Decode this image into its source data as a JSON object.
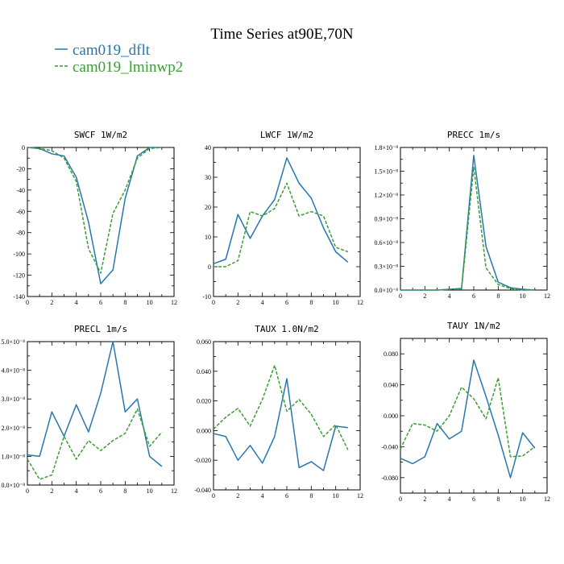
{
  "title": "Time Series at90E,70N",
  "legend": [
    {
      "label": "cam019_dflt",
      "color": "#2677b1",
      "dash": ""
    },
    {
      "label": "cam019_lminwp2",
      "color": "#3a9e32",
      "dash": "4,2"
    }
  ],
  "chart_data": [
    {
      "type": "line",
      "title": "SWCF  1W/m2",
      "x": [
        0,
        1,
        2,
        3,
        4,
        5,
        6,
        7,
        8,
        9,
        10,
        11
      ],
      "xlim": [
        0,
        12
      ],
      "xticks": [
        "0",
        "2",
        "4",
        "6",
        "8",
        "10",
        "12"
      ],
      "xtick_values": [
        0,
        2,
        4,
        6,
        8,
        10,
        12
      ],
      "ylim": [
        -140,
        0
      ],
      "yticks": [
        "0",
        "-20",
        "-40",
        "-60",
        "-80",
        "-100",
        "-120",
        "-140"
      ],
      "ytick_values": [
        0,
        -20,
        -40,
        -60,
        -80,
        -100,
        -120,
        -140
      ],
      "series": [
        {
          "name": "cam019_dflt",
          "values": [
            0,
            -1,
            -6,
            -8,
            -28,
            -70,
            -128,
            -115,
            -48,
            -8,
            0,
            0
          ]
        },
        {
          "name": "cam019_lminwp2",
          "values": [
            0,
            -1,
            -3,
            -10,
            -32,
            -95,
            -118,
            -62,
            -40,
            -10,
            -1,
            0
          ]
        }
      ]
    },
    {
      "type": "line",
      "title": "LWCF  1W/m2",
      "x": [
        0,
        1,
        2,
        3,
        4,
        5,
        6,
        7,
        8,
        9,
        10,
        11
      ],
      "xlim": [
        0,
        12
      ],
      "xticks": [
        "0",
        "2",
        "4",
        "6",
        "8",
        "10",
        "12"
      ],
      "xtick_values": [
        0,
        2,
        4,
        6,
        8,
        10,
        12
      ],
      "ylim": [
        -10,
        40
      ],
      "yticks": [
        "40",
        "30",
        "20",
        "10",
        "0",
        "-10"
      ],
      "ytick_values": [
        40,
        30,
        20,
        10,
        0,
        -10
      ],
      "series": [
        {
          "name": "cam019_dflt",
          "values": [
            1,
            2.5,
            17.5,
            9.5,
            17,
            22.5,
            36.5,
            28,
            23,
            13,
            5,
            1.5
          ]
        },
        {
          "name": "cam019_lminwp2",
          "values": [
            0,
            0,
            2,
            18.5,
            17,
            19.5,
            28,
            17,
            18.5,
            17,
            6.5,
            5
          ]
        }
      ]
    },
    {
      "type": "line",
      "title": "PRECC  1m/s",
      "x": [
        0,
        1,
        2,
        3,
        4,
        5,
        6,
        7,
        8,
        9,
        10,
        11
      ],
      "xlim": [
        0,
        12
      ],
      "xticks": [
        "0",
        "2",
        "4",
        "6",
        "8",
        "10",
        "12"
      ],
      "xtick_values": [
        0,
        2,
        4,
        6,
        8,
        10,
        12
      ],
      "ylim": [
        0,
        1.8e-08
      ],
      "yticks": [
        "1.8×10⁻⁸",
        "1.5×10⁻⁸",
        "1.2×10⁻⁸",
        "0.9×10⁻⁸",
        "0.6×10⁻⁸",
        "0.3×10⁻⁸",
        "0.0×10⁻⁸"
      ],
      "ytick_values": [
        1.8e-08,
        1.5e-08,
        1.2e-08,
        9e-09,
        6e-09,
        3e-09,
        0
      ],
      "series": [
        {
          "name": "cam019_dflt",
          "values": [
            0,
            0,
            0,
            0,
            1e-10,
            2e-10,
            1.7e-08,
            5.5e-09,
            1e-09,
            3e-10,
            1e-10,
            0
          ]
        },
        {
          "name": "cam019_lminwp2",
          "values": [
            0,
            0,
            0,
            0,
            1e-10,
            1e-10,
            1.55e-08,
            2.8e-09,
            7e-10,
            2e-10,
            0,
            0
          ]
        }
      ]
    },
    {
      "type": "line",
      "title": "PRECL  1m/s",
      "x": [
        0,
        1,
        2,
        3,
        4,
        5,
        6,
        7,
        8,
        9,
        10,
        11
      ],
      "xlim": [
        0,
        12
      ],
      "xticks": [
        "0",
        "2",
        "4",
        "6",
        "8",
        "10",
        "12"
      ],
      "xtick_values": [
        0,
        2,
        4,
        6,
        8,
        10,
        12
      ],
      "ylim": [
        0,
        5e-08
      ],
      "yticks": [
        "5.0×10⁻⁸",
        "4.0×10⁻⁸",
        "3.0×10⁻⁸",
        "2.0×10⁻⁸",
        "1.0×10⁻⁸",
        "0.0×10⁻⁸"
      ],
      "ytick_values": [
        5e-08,
        4e-08,
        3e-08,
        2e-08,
        1e-08,
        0
      ],
      "series": [
        {
          "name": "cam019_dflt",
          "values": [
            1.05e-08,
            1e-08,
            2.55e-08,
            1.7e-08,
            2.8e-08,
            1.85e-08,
            3.2e-08,
            5e-08,
            2.55e-08,
            3e-08,
            1e-08,
            6.5e-09
          ]
        },
        {
          "name": "cam019_lminwp2",
          "values": [
            9e-09,
            2e-09,
            3.5e-09,
            1.7e-08,
            9e-09,
            1.55e-08,
            1.2e-08,
            1.55e-08,
            1.8e-08,
            2.65e-08,
            1.35e-08,
            1.85e-08
          ]
        }
      ]
    },
    {
      "type": "line",
      "title": "TAUX  1.0N/m2",
      "x": [
        0,
        1,
        2,
        3,
        4,
        5,
        6,
        7,
        8,
        9,
        10,
        11
      ],
      "xlim": [
        0,
        12
      ],
      "xticks": [
        "0",
        "2",
        "4",
        "6",
        "8",
        "10",
        "12"
      ],
      "xtick_values": [
        0,
        2,
        4,
        6,
        8,
        10,
        12
      ],
      "ylim": [
        -0.04,
        0.06
      ],
      "yticks": [
        "0.060",
        "0.040",
        "0.020",
        "0.000",
        "-0.020",
        "-0.040"
      ],
      "ytick_values": [
        0.06,
        0.04,
        0.02,
        0,
        -0.02,
        -0.04
      ],
      "series": [
        {
          "name": "cam019_dflt",
          "values": [
            -0.002,
            -0.004,
            -0.02,
            -0.01,
            -0.022,
            -0.004,
            0.035,
            -0.025,
            -0.021,
            -0.027,
            0.003,
            0.002
          ]
        },
        {
          "name": "cam019_lminwp2",
          "values": [
            0.001,
            0.009,
            0.015,
            0.003,
            0.021,
            0.044,
            0.013,
            0.021,
            0.011,
            -0.004,
            0.004,
            -0.013
          ]
        }
      ]
    },
    {
      "type": "line",
      "title": "TAUY  1N/m2",
      "x": [
        0,
        1,
        2,
        3,
        4,
        5,
        6,
        7,
        8,
        9,
        10,
        11
      ],
      "xlim": [
        0,
        12
      ],
      "xticks": [
        "0",
        "2",
        "4",
        "6",
        "8",
        "10",
        "12"
      ],
      "xtick_values": [
        0,
        2,
        4,
        6,
        8,
        10,
        12
      ],
      "ylim": [
        -0.1,
        0.1
      ],
      "yticks": [
        "0.080",
        "0.040",
        "0.000",
        "-0.040",
        "-0.080"
      ],
      "ytick_values": [
        0.08,
        0.04,
        0,
        -0.04,
        -0.08
      ],
      "series": [
        {
          "name": "cam019_dflt",
          "values": [
            -0.055,
            -0.062,
            -0.053,
            -0.01,
            -0.03,
            -0.02,
            0.072,
            0.025,
            -0.025,
            -0.08,
            -0.022,
            -0.042
          ]
        },
        {
          "name": "cam019_lminwp2",
          "values": [
            -0.043,
            -0.01,
            -0.012,
            -0.02,
            0,
            0.037,
            0.022,
            -0.004,
            0.049,
            -0.053,
            -0.052,
            -0.04
          ]
        }
      ]
    }
  ]
}
